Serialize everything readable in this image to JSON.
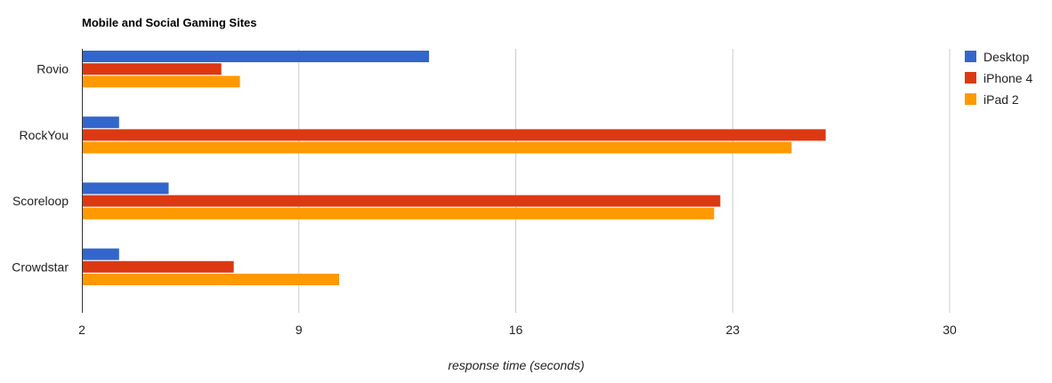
{
  "chart_data": {
    "type": "bar",
    "orientation": "horizontal",
    "title": "Mobile and Social Gaming Sites",
    "xlabel": "response time (seconds)",
    "ylabel": "",
    "xlim": [
      2,
      30
    ],
    "x_ticks": [
      "2",
      "9",
      "16",
      "23",
      "30"
    ],
    "x_tick_values": [
      2,
      9,
      16,
      23,
      30
    ],
    "grid": true,
    "legend_position": "right",
    "categories": [
      "Rovio",
      "RockYou",
      "Scoreloop",
      "Crowdstar"
    ],
    "series": [
      {
        "name": "Desktop",
        "color": "#3366cc",
        "values": [
          13.2,
          3.2,
          4.8,
          3.2
        ]
      },
      {
        "name": "iPhone 4",
        "color": "#dc3912",
        "values": [
          6.5,
          26.0,
          22.6,
          6.9
        ]
      },
      {
        "name": "iPad 2",
        "color": "#ff9900",
        "values": [
          7.1,
          24.9,
          22.4,
          10.3
        ]
      }
    ]
  }
}
